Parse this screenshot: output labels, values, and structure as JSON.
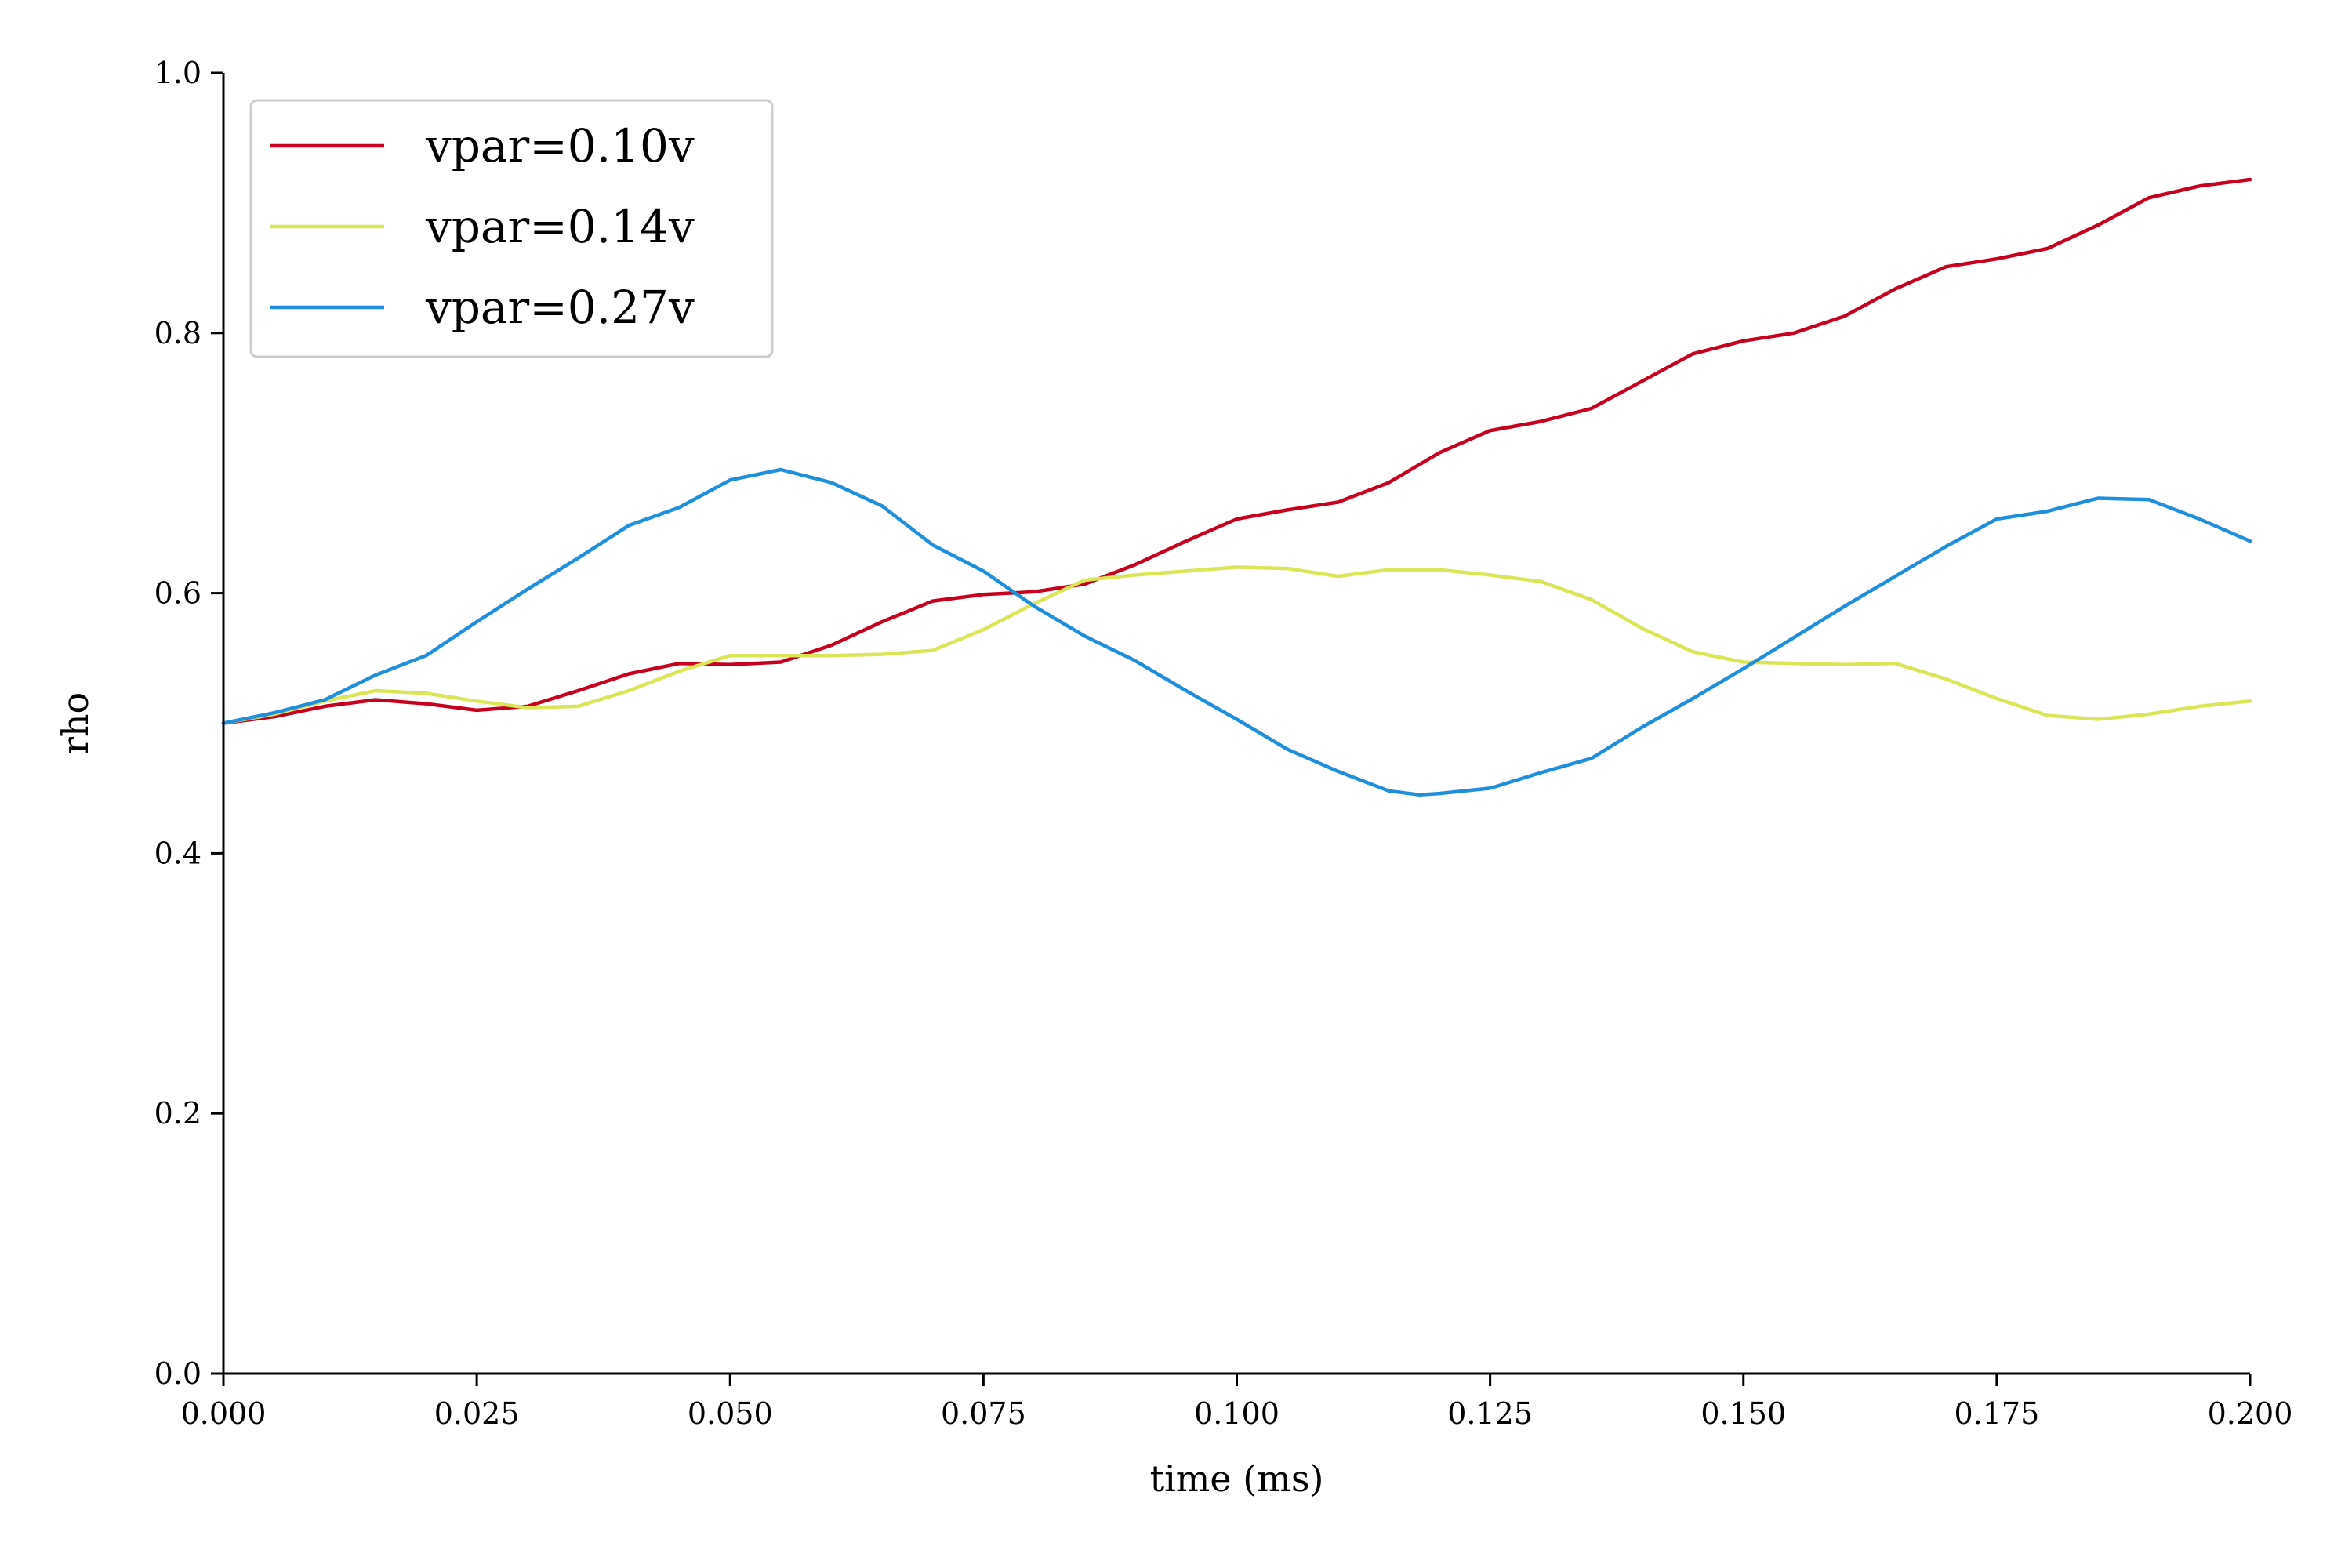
{
  "chart_data": {
    "type": "line",
    "title": "",
    "xlabel": "time (ms)",
    "ylabel": "rho",
    "xlim": [
      0.0,
      0.2
    ],
    "ylim": [
      0.0,
      1.0
    ],
    "xticks": [
      "0.000",
      "0.025",
      "0.050",
      "0.075",
      "0.100",
      "0.125",
      "0.150",
      "0.175",
      "0.200"
    ],
    "yticks": [
      "0.0",
      "0.2",
      "0.4",
      "0.6",
      "0.8",
      "1.0"
    ],
    "grid": false,
    "legend_position": "top-left",
    "series": [
      {
        "name": "vpar=0.10v",
        "color": "#c8001e",
        "points": [
          [
            0.0,
            0.5
          ],
          [
            0.005,
            0.505
          ],
          [
            0.01,
            0.513
          ],
          [
            0.015,
            0.518
          ],
          [
            0.02,
            0.515
          ],
          [
            0.025,
            0.51
          ],
          [
            0.03,
            0.513
          ],
          [
            0.035,
            0.525
          ],
          [
            0.04,
            0.538
          ],
          [
            0.045,
            0.546
          ],
          [
            0.05,
            0.545
          ],
          [
            0.055,
            0.547
          ],
          [
            0.06,
            0.56
          ],
          [
            0.065,
            0.578
          ],
          [
            0.07,
            0.594
          ],
          [
            0.075,
            0.599
          ],
          [
            0.08,
            0.601
          ],
          [
            0.085,
            0.607
          ],
          [
            0.09,
            0.622
          ],
          [
            0.095,
            0.64
          ],
          [
            0.1,
            0.657
          ],
          [
            0.105,
            0.664
          ],
          [
            0.11,
            0.67
          ],
          [
            0.115,
            0.685
          ],
          [
            0.12,
            0.708
          ],
          [
            0.125,
            0.725
          ],
          [
            0.13,
            0.732
          ],
          [
            0.135,
            0.742
          ],
          [
            0.14,
            0.763
          ],
          [
            0.145,
            0.784
          ],
          [
            0.15,
            0.794
          ],
          [
            0.155,
            0.8
          ],
          [
            0.16,
            0.813
          ],
          [
            0.165,
            0.834
          ],
          [
            0.17,
            0.851
          ],
          [
            0.175,
            0.857
          ],
          [
            0.18,
            0.865
          ],
          [
            0.185,
            0.883
          ],
          [
            0.19,
            0.904
          ],
          [
            0.195,
            0.913
          ],
          [
            0.2,
            0.918
          ]
        ]
      },
      {
        "name": "vpar=0.14v",
        "color": "#dbe657",
        "points": [
          [
            0.0,
            0.5
          ],
          [
            0.005,
            0.507
          ],
          [
            0.01,
            0.517
          ],
          [
            0.015,
            0.525
          ],
          [
            0.02,
            0.523
          ],
          [
            0.025,
            0.517
          ],
          [
            0.03,
            0.512
          ],
          [
            0.035,
            0.513
          ],
          [
            0.04,
            0.525
          ],
          [
            0.045,
            0.54
          ],
          [
            0.05,
            0.552
          ],
          [
            0.055,
            0.552
          ],
          [
            0.06,
            0.552
          ],
          [
            0.065,
            0.553
          ],
          [
            0.07,
            0.556
          ],
          [
            0.075,
            0.572
          ],
          [
            0.08,
            0.592
          ],
          [
            0.085,
            0.61
          ],
          [
            0.09,
            0.614
          ],
          [
            0.095,
            0.617
          ],
          [
            0.1,
            0.62
          ],
          [
            0.105,
            0.619
          ],
          [
            0.11,
            0.613
          ],
          [
            0.115,
            0.618
          ],
          [
            0.12,
            0.618
          ],
          [
            0.125,
            0.614
          ],
          [
            0.13,
            0.609
          ],
          [
            0.135,
            0.595
          ],
          [
            0.14,
            0.573
          ],
          [
            0.145,
            0.555
          ],
          [
            0.15,
            0.547
          ],
          [
            0.155,
            0.546
          ],
          [
            0.16,
            0.545
          ],
          [
            0.165,
            0.546
          ],
          [
            0.17,
            0.534
          ],
          [
            0.175,
            0.519
          ],
          [
            0.18,
            0.506
          ],
          [
            0.185,
            0.503
          ],
          [
            0.19,
            0.507
          ],
          [
            0.195,
            0.513
          ],
          [
            0.2,
            0.517
          ]
        ]
      },
      {
        "name": "vpar=0.27v",
        "color": "#1e8fdc",
        "points": [
          [
            0.0,
            0.5
          ],
          [
            0.005,
            0.508
          ],
          [
            0.01,
            0.518
          ],
          [
            0.015,
            0.537
          ],
          [
            0.02,
            0.552
          ],
          [
            0.025,
            0.578
          ],
          [
            0.03,
            0.603
          ],
          [
            0.035,
            0.627
          ],
          [
            0.04,
            0.652
          ],
          [
            0.045,
            0.666
          ],
          [
            0.05,
            0.687
          ],
          [
            0.055,
            0.695
          ],
          [
            0.06,
            0.685
          ],
          [
            0.065,
            0.667
          ],
          [
            0.07,
            0.637
          ],
          [
            0.075,
            0.617
          ],
          [
            0.08,
            0.59
          ],
          [
            0.085,
            0.567
          ],
          [
            0.09,
            0.548
          ],
          [
            0.095,
            0.525
          ],
          [
            0.1,
            0.503
          ],
          [
            0.105,
            0.48
          ],
          [
            0.11,
            0.463
          ],
          [
            0.115,
            0.448
          ],
          [
            0.118,
            0.445
          ],
          [
            0.12,
            0.446
          ],
          [
            0.125,
            0.45
          ],
          [
            0.13,
            0.462
          ],
          [
            0.135,
            0.473
          ],
          [
            0.14,
            0.497
          ],
          [
            0.145,
            0.519
          ],
          [
            0.15,
            0.542
          ],
          [
            0.155,
            0.566
          ],
          [
            0.16,
            0.59
          ],
          [
            0.165,
            0.613
          ],
          [
            0.17,
            0.636
          ],
          [
            0.175,
            0.657
          ],
          [
            0.18,
            0.663
          ],
          [
            0.185,
            0.673
          ],
          [
            0.19,
            0.672
          ],
          [
            0.195,
            0.657
          ],
          [
            0.2,
            0.64
          ]
        ]
      }
    ]
  }
}
